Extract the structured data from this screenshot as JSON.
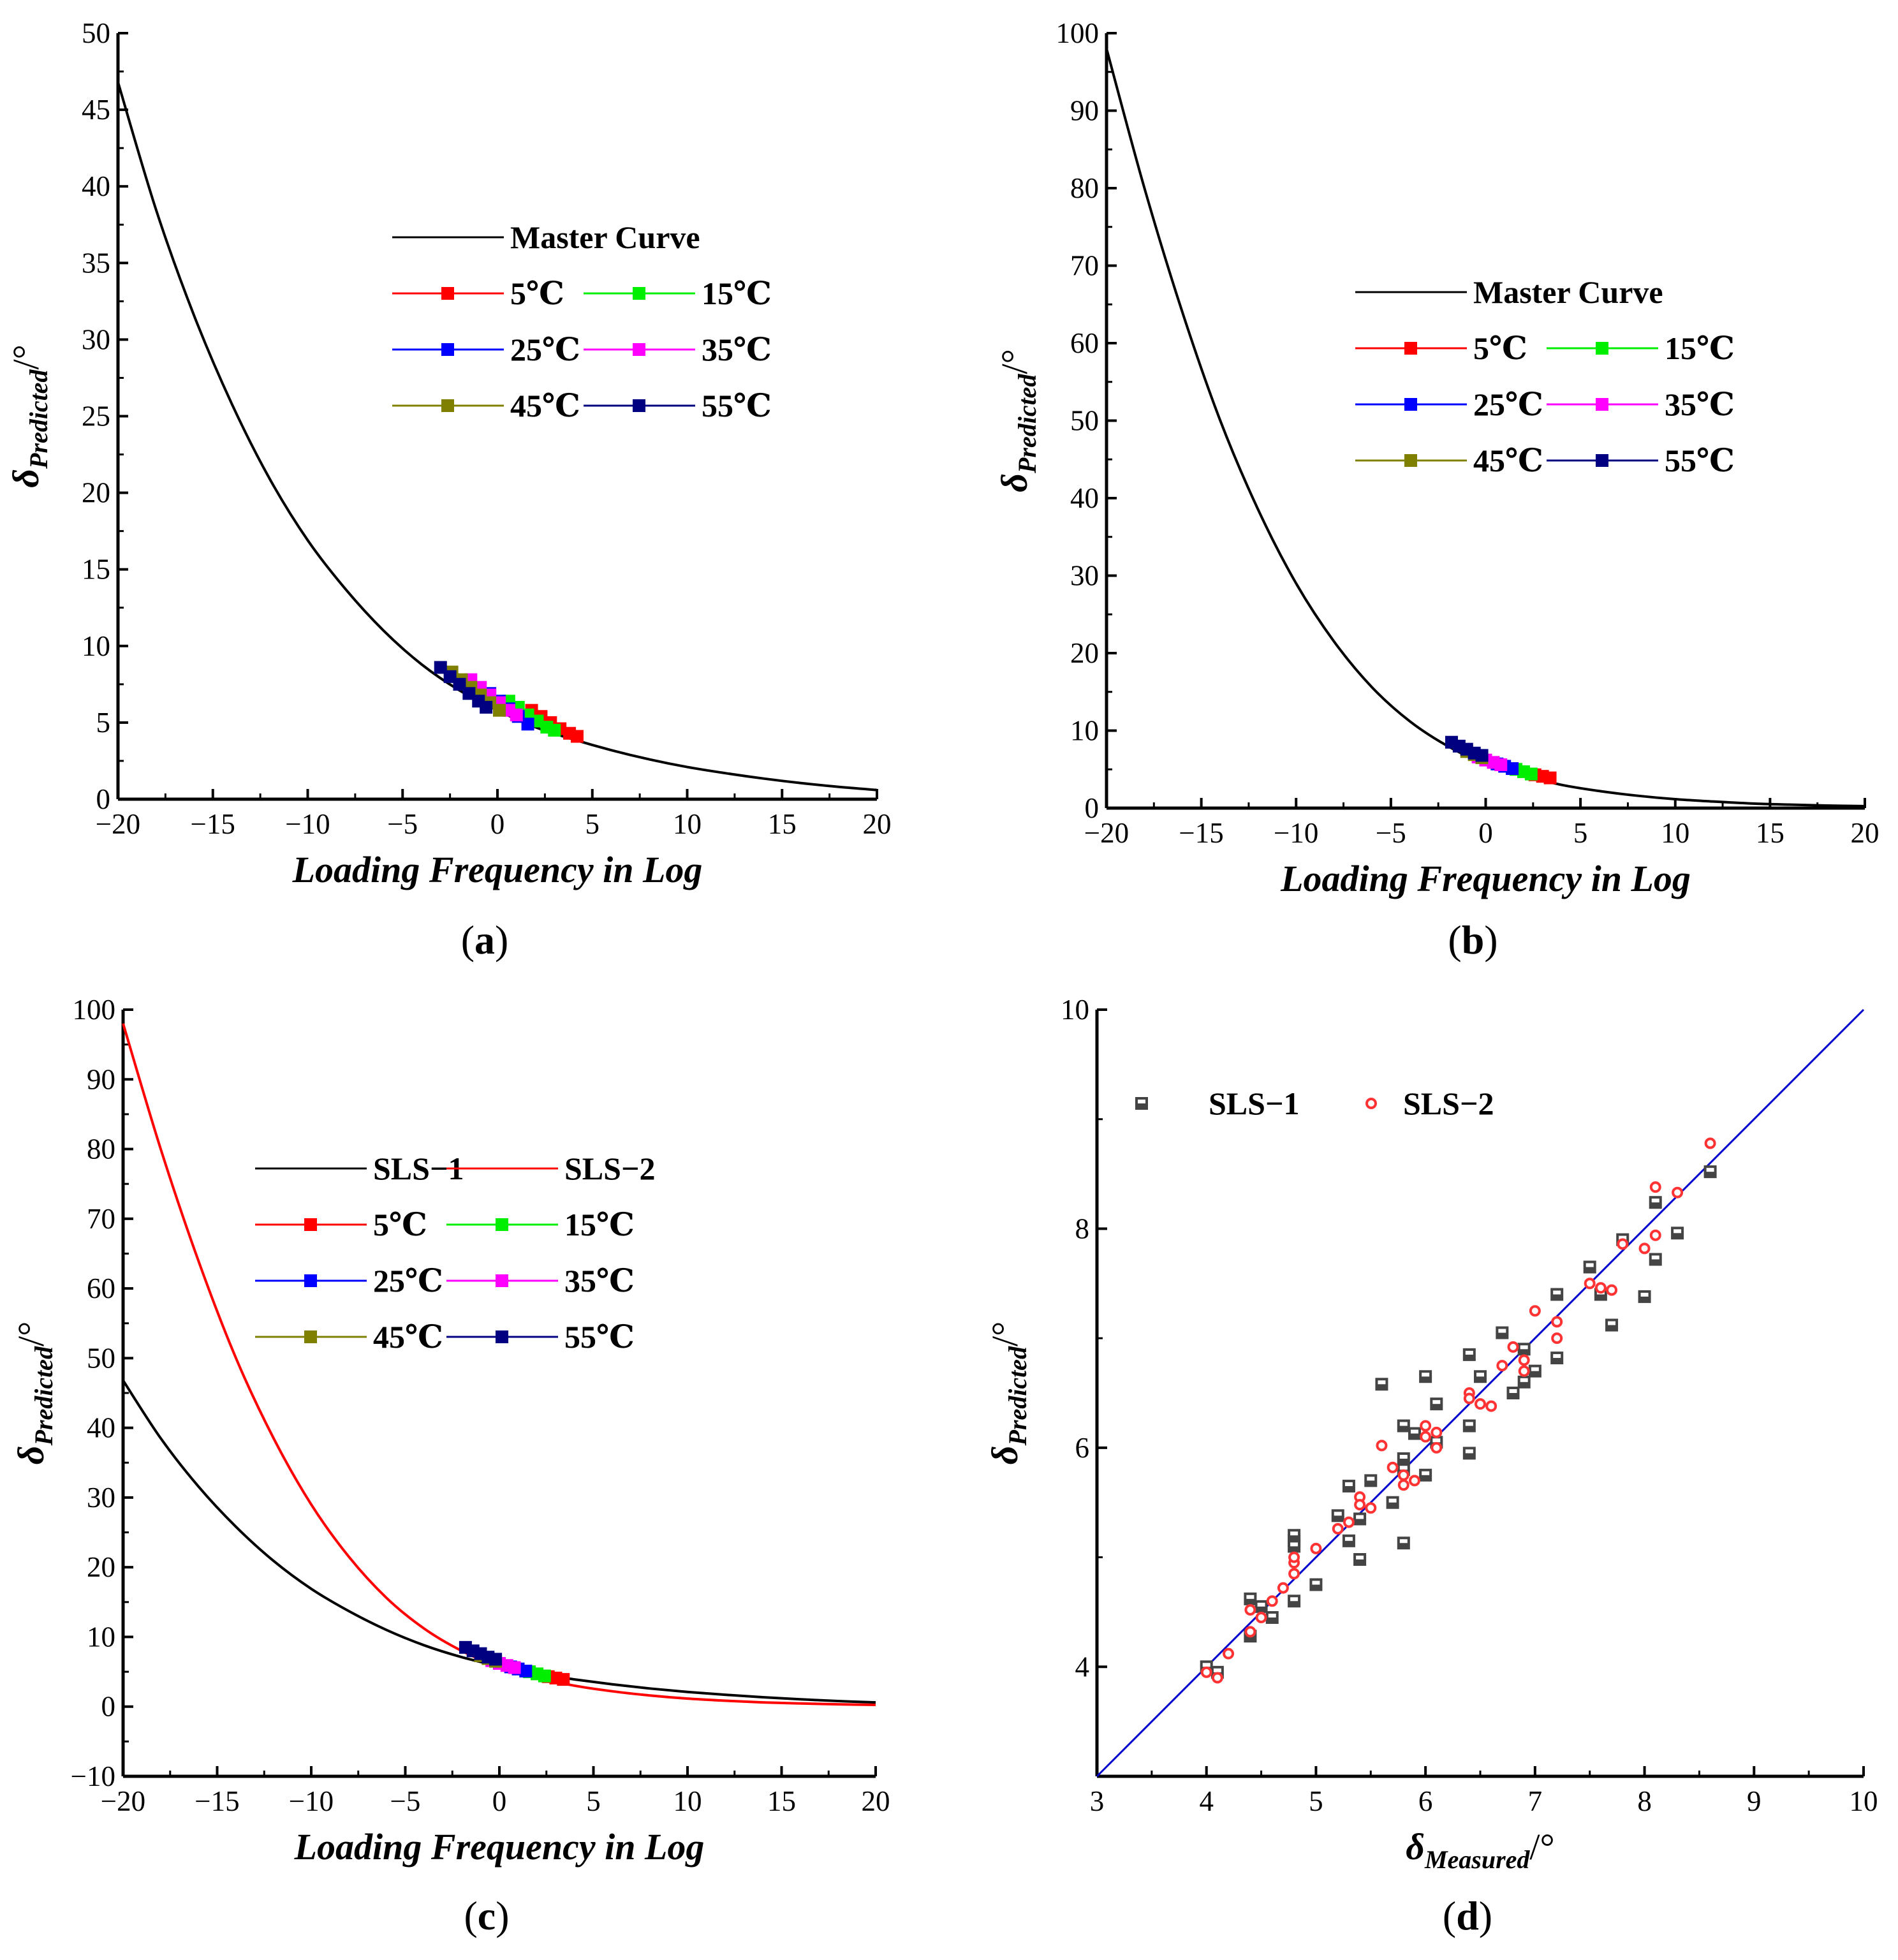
{
  "chart_data": [
    {
      "id": "a",
      "type": "line",
      "caption_letter": "a",
      "xlabel": "Loading Frequency in Log",
      "ylabel_main": "δ",
      "ylabel_sub": "Predicted",
      "ylabel_unit": "/°",
      "xlim": [
        -20,
        20
      ],
      "ylim": [
        0,
        50
      ],
      "xticks": [
        -20,
        -15,
        -10,
        -5,
        0,
        5,
        10,
        15,
        20
      ],
      "yticks": [
        0,
        5,
        10,
        15,
        20,
        25,
        30,
        35,
        40,
        45,
        50
      ],
      "curves": [
        {
          "name": "Master Curve",
          "color": "#000000",
          "x": [
            -20,
            -18,
            -16,
            -14,
            -12,
            -10,
            -8,
            -6,
            -4,
            -2,
            0,
            2,
            4,
            6,
            8,
            10,
            12,
            14,
            16,
            18,
            20
          ],
          "y": [
            46.8,
            38.5,
            31.6,
            25.8,
            20.9,
            16.9,
            13.7,
            11.0,
            8.8,
            7.1,
            5.8,
            4.7,
            3.9,
            3.2,
            2.6,
            2.1,
            1.7,
            1.35,
            1.05,
            0.8,
            0.6
          ]
        }
      ],
      "series": [
        {
          "name": "5℃",
          "color": "#ff0000",
          "x": [
            1.8,
            2.3,
            2.8,
            3.3,
            3.8,
            4.2
          ],
          "y": [
            5.8,
            5.4,
            5.0,
            4.6,
            4.3,
            4.1
          ]
        },
        {
          "name": "15℃",
          "color": "#00ee00",
          "x": [
            0.6,
            1.1,
            1.6,
            2.1,
            2.6,
            3.0
          ],
          "y": [
            6.4,
            6.0,
            5.5,
            5.1,
            4.7,
            4.5
          ]
        },
        {
          "name": "25℃",
          "color": "#0000ff",
          "x": [
            -0.4,
            0.1,
            0.6,
            1.1,
            1.6
          ],
          "y": [
            6.9,
            6.4,
            5.9,
            5.4,
            4.9
          ]
        },
        {
          "name": "35℃",
          "color": "#ff00ff",
          "x": [
            -1.4,
            -0.9,
            -0.4,
            0.1,
            0.6,
            1.0
          ],
          "y": [
            7.8,
            7.3,
            6.8,
            6.3,
            5.8,
            5.5
          ]
        },
        {
          "name": "45℃",
          "color": "#808000",
          "x": [
            -2.4,
            -1.9,
            -1.4,
            -0.9,
            -0.4,
            0.1
          ],
          "y": [
            8.3,
            7.8,
            7.3,
            6.8,
            6.3,
            5.8
          ]
        },
        {
          "name": "55℃",
          "color": "#000080",
          "x": [
            -3.0,
            -2.5,
            -2.0,
            -1.5,
            -1.0,
            -0.6
          ],
          "y": [
            8.6,
            8.0,
            7.5,
            6.9,
            6.4,
            6.0
          ]
        }
      ]
    },
    {
      "id": "b",
      "type": "line",
      "caption_letter": "b",
      "xlabel": "Loading Frequency in Log",
      "ylabel_main": "δ",
      "ylabel_sub": "Predicted",
      "ylabel_unit": "/°",
      "xlim": [
        -20,
        20
      ],
      "ylim": [
        0,
        100
      ],
      "xticks": [
        -20,
        -15,
        -10,
        -5,
        0,
        5,
        10,
        15,
        20
      ],
      "yticks": [
        0,
        10,
        20,
        30,
        40,
        50,
        60,
        70,
        80,
        90,
        100
      ],
      "curves": [
        {
          "name": "Master Curve",
          "color": "#000000",
          "x": [
            -20,
            -18,
            -16,
            -14,
            -12,
            -10,
            -8,
            -6,
            -4,
            -2,
            0,
            2,
            4,
            6,
            8,
            10,
            12,
            14,
            16,
            18,
            20
          ],
          "y": [
            98.0,
            80.0,
            64.0,
            50.0,
            38.5,
            29.0,
            21.5,
            15.6,
            11.2,
            8.0,
            5.7,
            4.2,
            3.0,
            2.2,
            1.6,
            1.15,
            0.85,
            0.6,
            0.45,
            0.33,
            0.25
          ]
        }
      ],
      "series": [
        {
          "name": "5℃",
          "color": "#ff0000",
          "x": [
            2.6,
            3.0,
            3.4
          ],
          "y": [
            4.3,
            4.1,
            3.9
          ]
        },
        {
          "name": "15℃",
          "color": "#00ee00",
          "x": [
            1.6,
            2.0,
            2.4
          ],
          "y": [
            5.0,
            4.7,
            4.4
          ]
        },
        {
          "name": "25℃",
          "color": "#0000ff",
          "x": [
            0.6,
            1.0,
            1.4
          ],
          "y": [
            5.7,
            5.4,
            5.1
          ]
        },
        {
          "name": "35℃",
          "color": "#ff00ff",
          "x": [
            -0.4,
            0.0,
            0.4,
            0.8
          ],
          "y": [
            6.6,
            6.2,
            5.9,
            5.6
          ]
        },
        {
          "name": "45℃",
          "color": "#808000",
          "x": [
            -1.0,
            -0.6,
            -0.2
          ],
          "y": [
            7.3,
            6.9,
            6.5
          ]
        },
        {
          "name": "55℃",
          "color": "#000080",
          "x": [
            -1.8,
            -1.4,
            -1.0,
            -0.6,
            -0.2
          ],
          "y": [
            8.5,
            8.0,
            7.6,
            7.1,
            6.8
          ]
        }
      ]
    },
    {
      "id": "c",
      "type": "line",
      "caption_letter": "c",
      "xlabel": "Loading Frequency in Log",
      "ylabel_main": "δ",
      "ylabel_sub": "Predicted",
      "ylabel_unit": "/°",
      "xlim": [
        -20,
        20
      ],
      "ylim": [
        -10,
        100
      ],
      "xticks": [
        -20,
        -15,
        -10,
        -5,
        0,
        5,
        10,
        15,
        20
      ],
      "yticks": [
        -10,
        0,
        10,
        20,
        30,
        40,
        50,
        60,
        70,
        80,
        90,
        100
      ],
      "curves": [
        {
          "name": "SLS−1",
          "color": "#000000",
          "x": [
            -20,
            -18,
            -16,
            -14,
            -12,
            -10,
            -8,
            -6,
            -4,
            -2,
            0,
            2,
            4,
            6,
            8,
            10,
            12,
            14,
            16,
            18,
            20
          ],
          "y": [
            46.8,
            38.5,
            31.6,
            25.8,
            20.9,
            16.9,
            13.7,
            11.0,
            8.8,
            7.1,
            5.8,
            4.7,
            3.9,
            3.2,
            2.6,
            2.1,
            1.7,
            1.35,
            1.05,
            0.8,
            0.6
          ]
        },
        {
          "name": "SLS−2",
          "color": "#ff0000",
          "x": [
            -20,
            -18,
            -16,
            -14,
            -12,
            -10,
            -8,
            -6,
            -4,
            -2,
            0,
            2,
            4,
            6,
            8,
            10,
            12,
            14,
            16,
            18,
            20
          ],
          "y": [
            98.0,
            80.0,
            64.0,
            50.0,
            38.5,
            29.0,
            21.5,
            15.6,
            11.2,
            8.0,
            5.7,
            4.2,
            3.0,
            2.2,
            1.6,
            1.15,
            0.85,
            0.6,
            0.45,
            0.33,
            0.25
          ]
        }
      ],
      "series": [
        {
          "name": "5℃",
          "color": "#ff0000",
          "x": [
            2.6,
            3.0,
            3.4
          ],
          "y": [
            4.3,
            4.1,
            3.9
          ]
        },
        {
          "name": "15℃",
          "color": "#00ee00",
          "x": [
            1.6,
            2.0,
            2.4
          ],
          "y": [
            5.0,
            4.7,
            4.4
          ]
        },
        {
          "name": "25℃",
          "color": "#0000ff",
          "x": [
            0.6,
            1.0,
            1.4
          ],
          "y": [
            5.7,
            5.4,
            5.1
          ]
        },
        {
          "name": "35℃",
          "color": "#ff00ff",
          "x": [
            -0.4,
            0.0,
            0.4,
            0.8
          ],
          "y": [
            6.6,
            6.2,
            5.9,
            5.6
          ]
        },
        {
          "name": "45℃",
          "color": "#808000",
          "x": [
            -1.0,
            -0.6,
            -0.2
          ],
          "y": [
            7.3,
            6.9,
            6.5
          ]
        },
        {
          "name": "55℃",
          "color": "#000080",
          "x": [
            -1.8,
            -1.4,
            -1.0,
            -0.6,
            -0.2
          ],
          "y": [
            8.5,
            8.0,
            7.6,
            7.1,
            6.8
          ]
        }
      ]
    },
    {
      "id": "d",
      "type": "scatter",
      "caption_letter": "d",
      "xlabel_main": "δ",
      "xlabel_sub": "Measured",
      "xlabel_unit": "/°",
      "ylabel_main": "δ",
      "ylabel_sub": "Predicted",
      "ylabel_unit": "/°",
      "xlim": [
        3,
        10
      ],
      "ylim": [
        3,
        10
      ],
      "xticks": [
        3,
        4,
        5,
        6,
        7,
        8,
        9,
        10
      ],
      "yticks": [
        4,
        6,
        8,
        10
      ],
      "reference_line": {
        "x": [
          3,
          10
        ],
        "y": [
          3,
          10
        ],
        "color": "#0000cc"
      },
      "series": [
        {
          "name": "SLS−1",
          "marker": "square",
          "color": "#444444",
          "x": [
            4.0,
            4.1,
            4.4,
            4.4,
            4.5,
            4.6,
            4.8,
            4.8,
            4.8,
            4.8,
            5.0,
            5.2,
            5.3,
            5.3,
            5.4,
            5.4,
            5.5,
            5.6,
            5.7,
            5.8,
            5.8,
            5.8,
            5.8,
            5.9,
            6.0,
            6.0,
            6.1,
            6.1,
            6.4,
            6.4,
            6.4,
            6.5,
            6.7,
            6.8,
            6.9,
            6.9,
            7.0,
            7.2,
            7.2,
            7.5,
            7.6,
            7.7,
            7.8,
            8.0,
            8.1,
            8.1,
            8.3,
            8.6
          ],
          "y": [
            4.0,
            3.95,
            4.62,
            4.28,
            4.55,
            4.45,
            4.6,
            5.15,
            5.2,
            5.1,
            4.75,
            5.38,
            5.65,
            5.15,
            5.35,
            4.98,
            5.7,
            6.58,
            5.5,
            5.9,
            6.2,
            5.8,
            5.13,
            6.13,
            6.65,
            5.75,
            6.4,
            6.05,
            6.85,
            6.2,
            5.95,
            6.65,
            7.05,
            6.5,
            6.9,
            6.6,
            6.7,
            7.4,
            6.82,
            7.65,
            7.4,
            7.12,
            7.9,
            7.38,
            8.24,
            7.72,
            7.96,
            8.52
          ]
        },
        {
          "name": "SLS−2",
          "marker": "circle",
          "color": "#ff3333",
          "x": [
            4.0,
            4.1,
            4.2,
            4.4,
            4.4,
            4.5,
            4.6,
            4.7,
            4.8,
            4.8,
            4.8,
            5.0,
            5.2,
            5.3,
            5.4,
            5.4,
            5.5,
            5.6,
            5.7,
            5.8,
            5.8,
            5.9,
            6.0,
            6.0,
            6.1,
            6.1,
            6.4,
            6.4,
            6.5,
            6.6,
            6.7,
            6.8,
            6.9,
            6.9,
            7.0,
            7.2,
            7.2,
            7.5,
            7.6,
            7.7,
            7.8,
            8.0,
            8.1,
            8.1,
            8.3,
            8.6
          ],
          "y": [
            3.95,
            3.9,
            4.12,
            4.52,
            4.32,
            4.45,
            4.6,
            4.72,
            4.95,
            5.0,
            4.85,
            5.08,
            5.26,
            5.32,
            5.55,
            5.48,
            5.45,
            6.02,
            5.82,
            5.66,
            5.75,
            5.7,
            6.2,
            6.1,
            6.14,
            6.0,
            6.5,
            6.45,
            6.4,
            6.38,
            6.75,
            6.92,
            6.8,
            6.7,
            7.25,
            7.15,
            7.0,
            7.5,
            7.46,
            7.44,
            7.86,
            7.82,
            8.38,
            7.94,
            8.33,
            8.78
          ]
        }
      ],
      "legend": [
        "SLS−1",
        "SLS−2"
      ]
    }
  ]
}
